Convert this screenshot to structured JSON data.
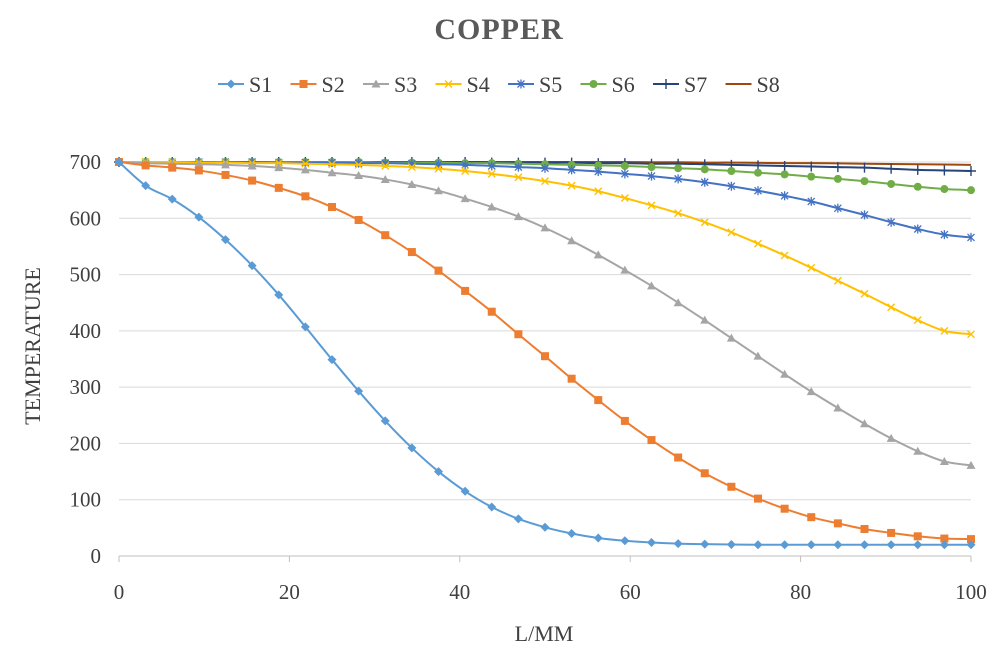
{
  "chart_data": {
    "type": "line",
    "title": "COPPER",
    "xlabel": "L/MM",
    "ylabel": "TEMPERATURE",
    "xlim": [
      0,
      100
    ],
    "ylim": [
      0,
      700
    ],
    "x_ticks": [
      "0",
      "20",
      "40",
      "60",
      "80",
      "100"
    ],
    "y_ticks": [
      "0",
      "100",
      "200",
      "300",
      "400",
      "500",
      "600",
      "700"
    ],
    "grid": "horizontal",
    "legend_position": "top",
    "x": [
      0,
      3.125,
      6.25,
      9.375,
      12.5,
      15.625,
      18.75,
      21.875,
      25,
      28.125,
      31.25,
      34.375,
      37.5,
      40.625,
      43.75,
      46.875,
      50,
      53.125,
      56.25,
      59.375,
      62.5,
      65.625,
      68.75,
      71.875,
      75,
      78.125,
      81.25,
      84.375,
      87.5,
      90.625,
      93.75,
      96.875,
      100
    ],
    "series": [
      {
        "name": "S1",
        "color": "#5b9bd5",
        "marker": "diamond",
        "values": [
          700,
          658,
          634,
          602,
          562,
          516,
          464,
          407,
          349,
          293,
          240,
          192,
          150,
          115,
          87,
          66,
          51,
          40,
          32,
          27,
          24,
          22,
          21,
          20.5,
          20,
          20,
          20,
          20,
          20,
          20,
          20,
          20,
          20
        ]
      },
      {
        "name": "S2",
        "color": "#ed7d31",
        "marker": "square",
        "values": [
          700,
          694,
          690,
          685,
          677,
          667,
          654,
          639,
          620,
          597,
          570,
          540,
          507,
          471,
          434,
          394,
          355,
          315,
          277,
          240,
          206,
          175,
          147,
          123,
          102,
          84,
          69,
          58,
          48,
          41,
          35,
          31,
          30
        ]
      },
      {
        "name": "S3",
        "color": "#a5a5a5",
        "marker": "triangle",
        "values": [
          700,
          698,
          697,
          696,
          695,
          693,
          690,
          686,
          681,
          676,
          669,
          660,
          649,
          635,
          620,
          603,
          583,
          560,
          535,
          508,
          480,
          450,
          419,
          387,
          355,
          323,
          292,
          263,
          235,
          209,
          186,
          168,
          161
        ]
      },
      {
        "name": "S4",
        "color": "#ffc000",
        "marker": "x",
        "values": [
          700,
          700,
          700,
          699,
          699,
          698,
          698,
          697,
          696,
          695,
          693,
          691,
          688,
          684,
          679,
          673,
          666,
          658,
          648,
          636,
          623,
          609,
          593,
          575,
          555,
          534,
          512,
          489,
          466,
          442,
          419,
          400,
          394
        ]
      },
      {
        "name": "S5",
        "color": "#4472c4",
        "marker": "star",
        "values": [
          700,
          700,
          700,
          700,
          700,
          700,
          699,
          699,
          699,
          698,
          698,
          697,
          696,
          695,
          693,
          691,
          689,
          686,
          683,
          679,
          675,
          670,
          664,
          657,
          649,
          640,
          630,
          618,
          606,
          593,
          581,
          571,
          566
        ]
      },
      {
        "name": "S6",
        "color": "#70ad47",
        "marker": "circle",
        "values": [
          700,
          700,
          700,
          700,
          700,
          700,
          700,
          700,
          700,
          700,
          699,
          699,
          699,
          698,
          698,
          697,
          696,
          695,
          694,
          693,
          691,
          689,
          687,
          684,
          681,
          678,
          674,
          670,
          666,
          661,
          656,
          652,
          650
        ]
      },
      {
        "name": "S7",
        "color": "#264478",
        "marker": "plus",
        "values": [
          700,
          700,
          700,
          700,
          700,
          700,
          700,
          700,
          700,
          700,
          700,
          700,
          700,
          700,
          699,
          699,
          699,
          699,
          698,
          698,
          697,
          697,
          696,
          695,
          694,
          693,
          692,
          691,
          690,
          688,
          686,
          685,
          684
        ]
      },
      {
        "name": "S8",
        "color": "#9e480e",
        "marker": "none",
        "values": [
          700,
          700,
          700,
          700,
          700,
          700,
          700,
          700,
          700,
          700,
          700,
          700,
          700,
          700,
          700,
          700,
          700,
          700,
          700,
          700,
          699.5,
          699.5,
          699,
          699,
          698.5,
          698,
          698,
          697.5,
          697,
          696.5,
          696,
          695.5,
          695
        ]
      }
    ]
  }
}
